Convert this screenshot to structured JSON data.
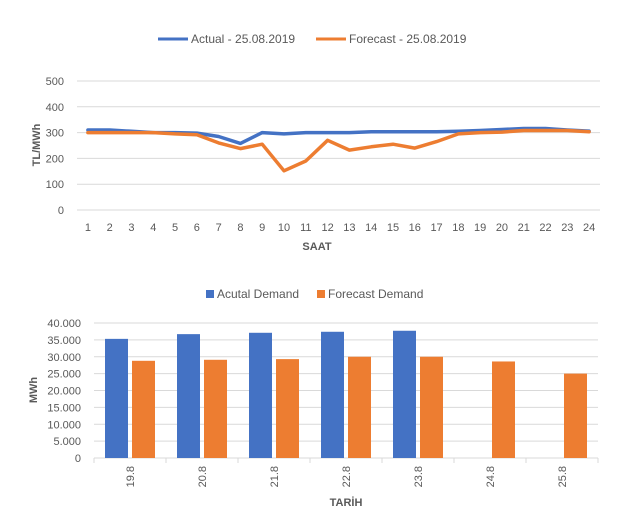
{
  "colors": {
    "actual": "#4472c4",
    "forecast": "#ed7d31",
    "grid": "#d9d9d9",
    "text": "#595959"
  },
  "chart_data": [
    {
      "type": "line",
      "x": [
        "1",
        "2",
        "3",
        "4",
        "5",
        "6",
        "7",
        "8",
        "9",
        "10",
        "11",
        "12",
        "13",
        "14",
        "15",
        "16",
        "17",
        "18",
        "19",
        "20",
        "21",
        "22",
        "23",
        "24"
      ],
      "series": [
        {
          "name": "Actual - 25.08.2019",
          "values": [
            310,
            310,
            305,
            300,
            300,
            298,
            285,
            258,
            300,
            295,
            300,
            300,
            300,
            303,
            303,
            303,
            303,
            305,
            308,
            312,
            316,
            316,
            310,
            306
          ]
        },
        {
          "name": "Forecast - 25.08.2019",
          "values": [
            300,
            300,
            300,
            300,
            295,
            292,
            260,
            238,
            255,
            152,
            190,
            270,
            232,
            245,
            255,
            240,
            265,
            295,
            300,
            302,
            308,
            308,
            308,
            303
          ]
        }
      ],
      "xlabel": "SAAT",
      "ylabel": "TL/MWh",
      "ylim": [
        0,
        500
      ],
      "yticks": [
        "0",
        "100",
        "200",
        "300",
        "400",
        "500"
      ],
      "grid": true,
      "legend": "top-center"
    },
    {
      "type": "bar",
      "categories": [
        "19.8",
        "20.8",
        "21.8",
        "22.8",
        "23.8",
        "24.8",
        "25.8"
      ],
      "series": [
        {
          "name": "Acutal Demand",
          "values": [
            35300,
            36700,
            37100,
            37400,
            37700,
            null,
            null
          ]
        },
        {
          "name": "Forecast Demand",
          "values": [
            28800,
            29100,
            29300,
            30000,
            30000,
            28600,
            25000
          ]
        }
      ],
      "xlabel": "TARİH",
      "ylabel": "MWh",
      "ylim": [
        0,
        40000
      ],
      "yticks": [
        "0",
        "5.000",
        "10.000",
        "15.000",
        "20.000",
        "25.000",
        "30.000",
        "35.000",
        "40.000"
      ],
      "grid": true,
      "legend": "top-center"
    }
  ]
}
